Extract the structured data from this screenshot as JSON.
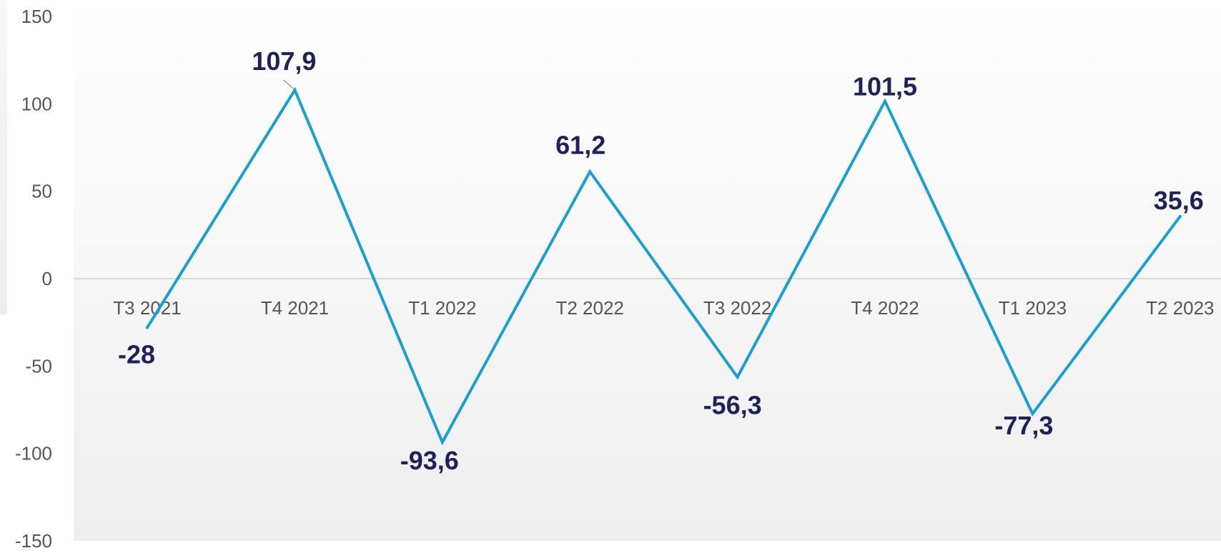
{
  "chart_data": {
    "type": "line",
    "title": "",
    "xlabel": "",
    "ylabel": "",
    "categories": [
      "T3 2021",
      "T4 2021",
      "T1 2022",
      "T2 2022",
      "T3 2022",
      "T4 2022",
      "T1 2023",
      "T2 2023"
    ],
    "series": [
      {
        "values": [
          -28,
          107.9,
          -93.6,
          61.2,
          -56.3,
          101.5,
          -77.3,
          35.6
        ],
        "data_labels": [
          "-28",
          "107,9",
          "-93,6",
          "61,2",
          "-56,3",
          "101,5",
          "-77,3",
          "35,6"
        ],
        "color": "#1a9fd4"
      }
    ],
    "yticks": [
      "150",
      "100",
      "50",
      "0",
      "-50",
      "-100",
      "-150"
    ],
    "ylim": [
      -150,
      150
    ],
    "grid": false,
    "legend": "none",
    "colors": {
      "line": "#1a9fd4",
      "data_label": "#1f2159",
      "tick_label": "#555555",
      "zero_line": "#d9d9d9"
    }
  }
}
